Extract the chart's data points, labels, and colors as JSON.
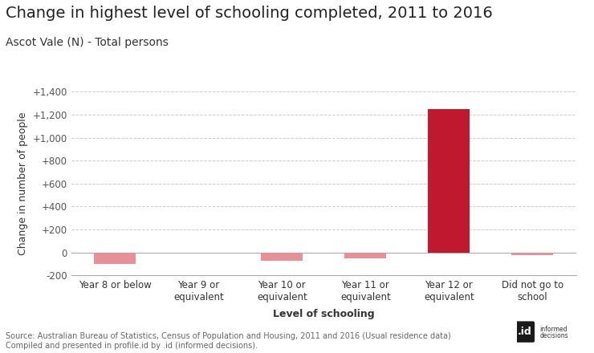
{
  "title": "Change in highest level of schooling completed, 2011 to 2016",
  "subtitle": "Ascot Vale (N) - Total persons",
  "categories": [
    "Year 8 or below",
    "Year 9 or\nequivalent",
    "Year 10 or\nequivalent",
    "Year 11 or\nequivalent",
    "Year 12 or\nequivalent",
    "Did not go to\nschool"
  ],
  "values": [
    -100,
    0,
    -70,
    -55,
    1250,
    -25
  ],
  "bar_color_positive": "#C0182E",
  "bar_color_negative": "#E8909A",
  "xlabel": "Level of schooling",
  "ylabel": "Change in number of people",
  "ylim": [
    -200,
    1400
  ],
  "yticks": [
    -200,
    0,
    200,
    400,
    600,
    800,
    1000,
    1200,
    1400
  ],
  "ytick_labels": [
    "-200",
    "0",
    "+200",
    "+400",
    "+600",
    "+800",
    "+1,000",
    "+1,200",
    "+1,400"
  ],
  "grid_color": "#cccccc",
  "background_color": "#ffffff",
  "title_fontsize": 14,
  "subtitle_fontsize": 10,
  "axis_label_fontsize": 9,
  "tick_fontsize": 8.5,
  "source_text": "Source: Australian Bureau of Statistics, Census of Population and Housing, 2011 and 2016 (Usual residence data)\nCompiled and presented in profile.id by .id (informed decisions).",
  "source_fontsize": 7
}
